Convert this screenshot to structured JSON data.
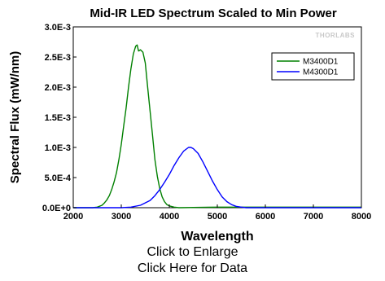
{
  "chart_data": {
    "type": "line",
    "title": "Mid-IR LED Spectrum Scaled to Min Power",
    "xlabel": "Wavelength",
    "ylabel": "Spectral Flux (mW/nm)",
    "xlim": [
      2000,
      8000
    ],
    "ylim": [
      0,
      0.003
    ],
    "x_ticks": [
      2000,
      3000,
      4000,
      5000,
      6000,
      7000,
      8000
    ],
    "y_ticks": [
      {
        "value": 0,
        "label": "0.0E+0"
      },
      {
        "value": 0.0005,
        "label": "5.0E-4"
      },
      {
        "value": 0.001,
        "label": "1.0E-3"
      },
      {
        "value": 0.0015,
        "label": "1.5E-3"
      },
      {
        "value": 0.002,
        "label": "2.0E-3"
      },
      {
        "value": 0.0025,
        "label": "2.5E-3"
      },
      {
        "value": 0.003,
        "label": "3.0E-3"
      }
    ],
    "grid": false,
    "legend_position": "top-right",
    "series": [
      {
        "name": "M3400D1",
        "color": "#008000",
        "x": [
          2000,
          2400,
          2500,
          2600,
          2650,
          2700,
          2750,
          2800,
          2850,
          2900,
          2950,
          3000,
          3050,
          3100,
          3150,
          3200,
          3250,
          3300,
          3330,
          3360,
          3400,
          3450,
          3500,
          3550,
          3600,
          3650,
          3700,
          3750,
          3800,
          3850,
          3900,
          3950,
          4000,
          4100,
          4200,
          5000,
          6000,
          7000,
          8000
        ],
        "y": [
          0,
          0,
          1e-05,
          4e-05,
          8e-05,
          0.00013,
          0.0002,
          0.0003,
          0.00043,
          0.00058,
          0.0008,
          0.00105,
          0.00135,
          0.00165,
          0.002,
          0.0023,
          0.00255,
          0.00268,
          0.0027,
          0.0026,
          0.00262,
          0.00258,
          0.0024,
          0.002,
          0.0016,
          0.0012,
          0.0008,
          0.00052,
          0.00032,
          0.00018,
          0.0001,
          5e-05,
          3e-05,
          1e-05,
          0,
          1e-05,
          1e-05,
          1e-05,
          1e-05
        ]
      },
      {
        "name": "M4300D1",
        "color": "#0000ff",
        "x": [
          2000,
          3000,
          3200,
          3400,
          3600,
          3700,
          3800,
          3900,
          4000,
          4100,
          4200,
          4300,
          4400,
          4450,
          4500,
          4600,
          4700,
          4800,
          4900,
          5000,
          5100,
          5200,
          5300,
          5400,
          5500,
          5600,
          6000,
          7000,
          8000
        ],
        "y": [
          0,
          0,
          1e-05,
          4e-05,
          0.00012,
          0.0002,
          0.0003,
          0.00042,
          0.00055,
          0.0007,
          0.00083,
          0.00094,
          0.001,
          0.001,
          0.00098,
          0.0009,
          0.00076,
          0.0006,
          0.00044,
          0.0003,
          0.00018,
          0.0001,
          5e-05,
          2e-05,
          1e-05,
          0,
          0,
          0,
          0
        ]
      }
    ]
  },
  "watermark": "THORLABS",
  "links": {
    "enlarge": "Click to Enlarge",
    "data": "Click Here for Data"
  }
}
